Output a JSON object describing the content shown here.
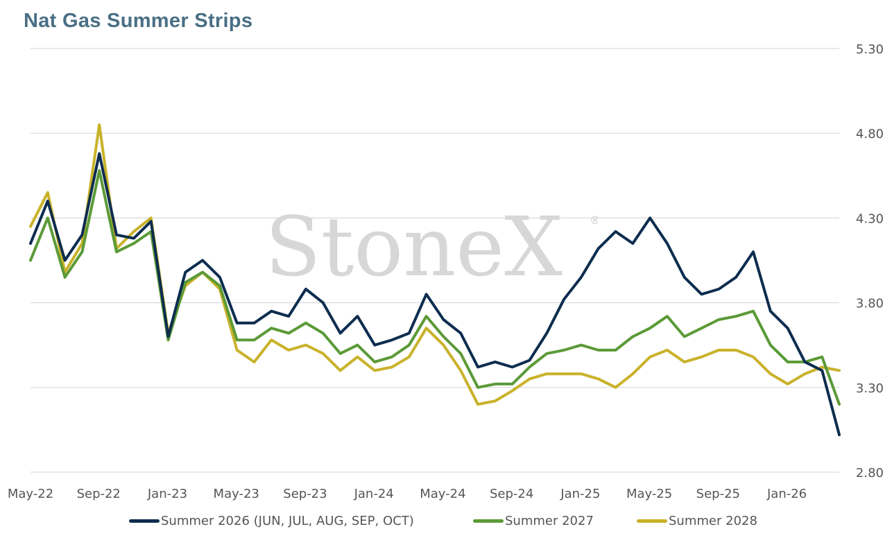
{
  "title": "Nat Gas Summer Strips",
  "watermark": {
    "text": "StoneX",
    "mark": "®"
  },
  "colors": {
    "s26": "#0d2d4f",
    "s27": "#5b9a37",
    "s28": "#c9b22a",
    "grid": "#d9d9d9"
  },
  "chart_data": {
    "type": "line",
    "title": "Nat Gas Summer Strips",
    "xlabel": "",
    "ylabel": "",
    "ylim": [
      2.8,
      5.3
    ],
    "y_ticks": [
      "5.30",
      "4.80",
      "4.30",
      "3.80",
      "3.30",
      "2.80"
    ],
    "y_axis_position": "right",
    "x_ticks": [
      "May-22",
      "Sep-22",
      "Jan-23",
      "May-23",
      "Sep-23",
      "Jan-24",
      "May-24",
      "Sep-24",
      "Jan-25",
      "May-25",
      "Sep-25",
      "Jan-26"
    ],
    "grid": true,
    "legend_position": "bottom",
    "x": [
      "2022-05",
      "2022-06",
      "2022-07",
      "2022-08",
      "2022-09",
      "2022-10",
      "2022-11",
      "2022-12",
      "2023-01",
      "2023-02",
      "2023-03",
      "2023-04",
      "2023-05",
      "2023-06",
      "2023-07",
      "2023-08",
      "2023-09",
      "2023-10",
      "2023-11",
      "2023-12",
      "2024-01",
      "2024-02",
      "2024-03",
      "2024-04",
      "2024-05",
      "2024-06",
      "2024-07",
      "2024-08",
      "2024-09",
      "2024-10",
      "2024-11",
      "2024-12",
      "2025-01",
      "2025-02",
      "2025-03",
      "2025-04",
      "2025-05",
      "2025-06",
      "2025-07",
      "2025-08",
      "2025-09",
      "2025-10",
      "2025-11",
      "2025-12",
      "2026-01",
      "2026-02",
      "2026-03",
      "2026-04"
    ],
    "series": [
      {
        "name": "Summer 2026 (JUN, JUL, AUG, SEP, OCT)",
        "values": [
          4.15,
          4.4,
          4.05,
          4.2,
          4.68,
          4.2,
          4.18,
          4.28,
          3.6,
          3.98,
          4.05,
          3.95,
          3.68,
          3.68,
          3.75,
          3.72,
          3.88,
          3.8,
          3.62,
          3.72,
          3.55,
          3.58,
          3.62,
          3.85,
          3.7,
          3.62,
          3.42,
          3.45,
          3.42,
          3.46,
          3.62,
          3.82,
          3.95,
          4.12,
          4.22,
          4.15,
          4.3,
          4.15,
          3.95,
          3.85,
          3.88,
          3.95,
          4.1,
          3.75,
          3.65,
          3.45,
          3.4,
          3.02
        ]
      },
      {
        "name": "Summer 2027",
        "values": [
          4.05,
          4.3,
          3.95,
          4.1,
          4.58,
          4.1,
          4.15,
          4.22,
          3.58,
          3.92,
          3.98,
          3.9,
          3.58,
          3.58,
          3.65,
          3.62,
          3.68,
          3.62,
          3.5,
          3.55,
          3.45,
          3.48,
          3.55,
          3.72,
          3.6,
          3.5,
          3.3,
          3.32,
          3.32,
          3.42,
          3.5,
          3.52,
          3.55,
          3.52,
          3.52,
          3.6,
          3.65,
          3.72,
          3.6,
          3.65,
          3.7,
          3.72,
          3.75,
          3.55,
          3.45,
          3.45,
          3.48,
          3.2
        ]
      },
      {
        "name": "Summer 2028",
        "values": [
          4.25,
          4.45,
          3.98,
          4.15,
          4.85,
          4.12,
          4.22,
          4.3,
          3.62,
          3.9,
          3.98,
          3.88,
          3.52,
          3.45,
          3.58,
          3.52,
          3.55,
          3.5,
          3.4,
          3.48,
          3.4,
          3.42,
          3.48,
          3.65,
          3.55,
          3.4,
          3.2,
          3.22,
          3.28,
          3.35,
          3.38,
          3.38,
          3.38,
          3.35,
          3.3,
          3.38,
          3.48,
          3.52,
          3.45,
          3.48,
          3.52,
          3.52,
          3.48,
          3.38,
          3.32,
          3.38,
          3.42,
          3.4
        ]
      }
    ]
  }
}
